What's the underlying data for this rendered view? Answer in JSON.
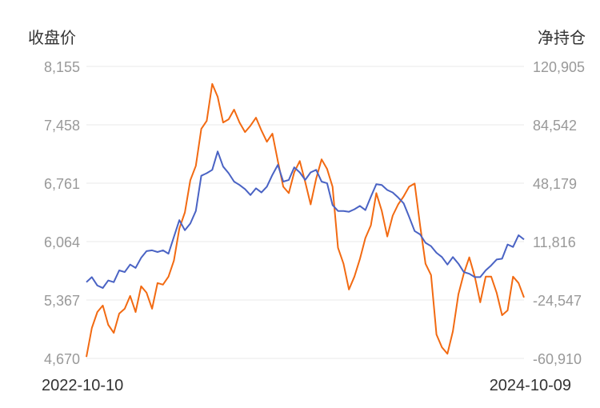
{
  "chart_data": {
    "type": "line",
    "y_left_title": "收盘价",
    "y_right_title": "净持仓",
    "y_left_ticks": [
      "8,155",
      "7,458",
      "6,761",
      "6,064",
      "5,367",
      "4,670"
    ],
    "y_right_ticks": [
      "120,905",
      "84,542",
      "48,179",
      "11,816",
      "-24,547",
      "-60,910"
    ],
    "y_left_range": [
      4670,
      8155
    ],
    "y_right_range": [
      -60910,
      120905
    ],
    "x_start_label": "2022-10-10",
    "x_end_label": "2024-10-09",
    "grid": true,
    "colors": {
      "series_left": "#4a63c4",
      "series_right": "#f26a12",
      "grid": "#e8e8e8"
    },
    "series": [
      {
        "axis": "left",
        "values": [
          5580,
          5640,
          5540,
          5510,
          5600,
          5580,
          5720,
          5700,
          5790,
          5750,
          5870,
          5950,
          5960,
          5940,
          5960,
          5920,
          6120,
          6320,
          6200,
          6280,
          6430,
          6850,
          6880,
          6920,
          7140,
          6960,
          6880,
          6780,
          6740,
          6690,
          6620,
          6700,
          6650,
          6720,
          6860,
          6980,
          6780,
          6800,
          6950,
          6890,
          6800,
          6890,
          6920,
          6780,
          6760,
          6500,
          6430,
          6430,
          6420,
          6450,
          6490,
          6440,
          6600,
          6750,
          6740,
          6680,
          6650,
          6590,
          6520,
          6360,
          6190,
          6150,
          6050,
          6010,
          5930,
          5880,
          5790,
          5880,
          5800,
          5700,
          5680,
          5640,
          5640,
          5720,
          5780,
          5850,
          5860,
          6030,
          6000,
          6140,
          6090
        ]
      },
      {
        "axis": "right",
        "values": [
          -60000,
          -42000,
          -32000,
          -28000,
          -40000,
          -45000,
          -33000,
          -30000,
          -22000,
          -32000,
          -16000,
          -20000,
          -30000,
          -14000,
          -15000,
          -10000,
          0,
          20000,
          30000,
          50000,
          59000,
          82000,
          87000,
          110000,
          102000,
          86000,
          88000,
          94000,
          86000,
          80000,
          84000,
          89000,
          81000,
          74000,
          79000,
          62000,
          46000,
          42000,
          55000,
          62000,
          49000,
          35000,
          51000,
          63000,
          57000,
          46000,
          8000,
          -2000,
          -18000,
          -10000,
          1000,
          14000,
          22000,
          42000,
          31000,
          15000,
          28000,
          35000,
          40000,
          46000,
          48000,
          22000,
          -2000,
          -9000,
          -46000,
          -54000,
          -58000,
          -44000,
          -21000,
          -8000,
          2000,
          -10000,
          -26000,
          -10000,
          -10000,
          -20000,
          -34000,
          -31000,
          -10000,
          -14000,
          -23000
        ]
      }
    ]
  }
}
